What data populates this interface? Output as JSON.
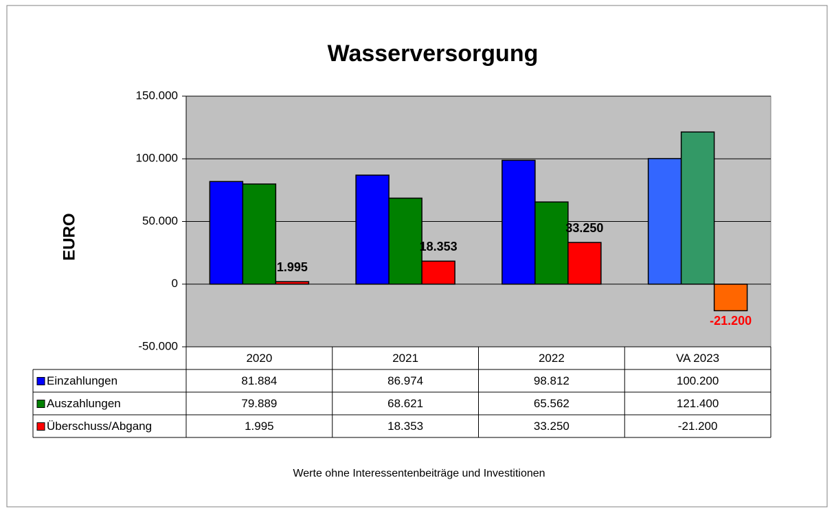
{
  "chart_data": {
    "type": "bar",
    "title": "Wasserversorgung",
    "y_label": "EURO",
    "footnote": "Werte ohne Interessentenbeiträge und Investitionen",
    "categories": [
      "2020",
      "2021",
      "2022",
      "VA 2023"
    ],
    "series": [
      {
        "name": "Einzahlungen",
        "color": "#0000ff",
        "colors": [
          "#0000ff",
          "#0000ff",
          "#0000ff",
          "#3366ff"
        ],
        "values": [
          81884,
          86974,
          98812,
          100200
        ],
        "value_labels": [
          "81.884",
          "86.974",
          "98.812",
          "100.200"
        ]
      },
      {
        "name": "Auszahlungen",
        "color": "#008000",
        "colors": [
          "#008000",
          "#008000",
          "#008000",
          "#339966"
        ],
        "values": [
          79889,
          68621,
          65562,
          121400
        ],
        "value_labels": [
          "79.889",
          "68.621",
          "65.562",
          "121.400"
        ]
      },
      {
        "name": "Überschuss/Abgang",
        "color": "#ff0000",
        "colors": [
          "#ff0000",
          "#ff0000",
          "#ff0000",
          "#ff6600"
        ],
        "values": [
          1995,
          18353,
          33250,
          -21200
        ],
        "value_labels": [
          "1.995",
          "18.353",
          "33.250",
          "-21.200"
        ]
      }
    ],
    "ylim": [
      -50000,
      150000
    ],
    "yticks": [
      {
        "value": -50000,
        "label": "-50.000"
      },
      0,
      {
        "value": 50000,
        "label": "50.000"
      },
      {
        "value": 100000,
        "label": "100.000"
      },
      {
        "value": 150000,
        "label": "150.000"
      }
    ],
    "grid": true,
    "plot_background": "#c0c0c0",
    "data_labels_series": [
      2
    ]
  }
}
